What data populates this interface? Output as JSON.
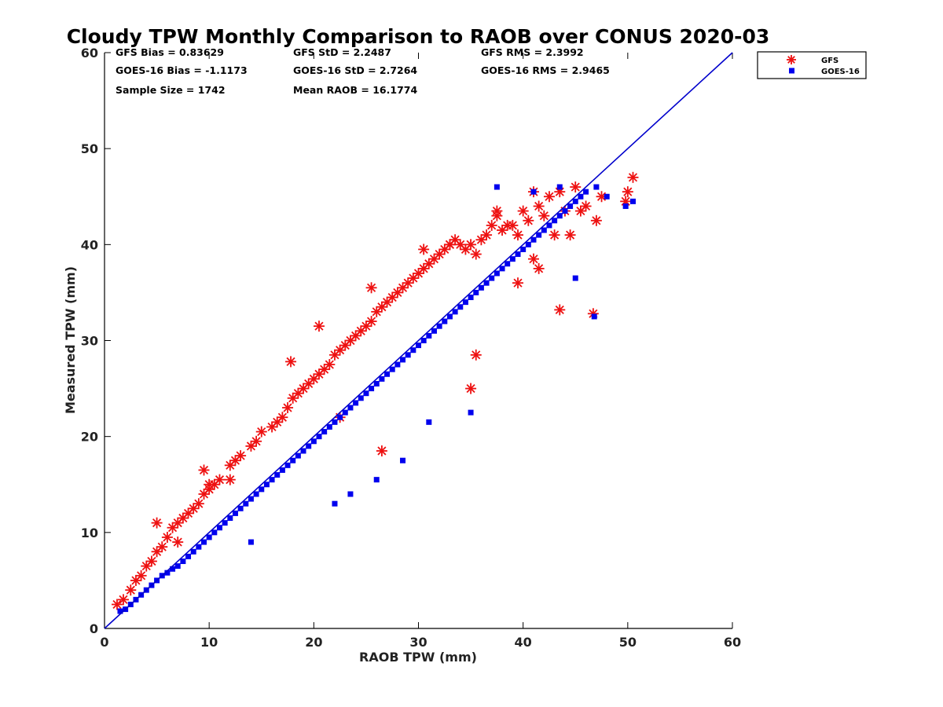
{
  "chart_data": {
    "type": "scatter",
    "title": "Cloudy TPW Monthly Comparison to RAOB over CONUS 2020-03",
    "xlabel": "RAOB TPW (mm)",
    "ylabel": "Measured TPW (mm)",
    "xlim": [
      0,
      60
    ],
    "ylim": [
      0,
      60
    ],
    "xticks": [
      0,
      10,
      20,
      30,
      40,
      50,
      60
    ],
    "yticks": [
      0,
      10,
      20,
      30,
      40,
      50,
      60
    ],
    "grid": false,
    "legend_position": "top-right outside",
    "reference_line": {
      "x": [
        0,
        60
      ],
      "y": [
        0,
        60
      ],
      "color": "#0000cc"
    },
    "stats": [
      {
        "label": "GFS Bias = 0.83629"
      },
      {
        "label": "GFS StD = 2.2487"
      },
      {
        "label": "GFS RMS = 2.3992"
      },
      {
        "label": "GOES-16 Bias = -1.1173"
      },
      {
        "label": "GOES-16 StD = 2.7264"
      },
      {
        "label": "GOES-16 RMS = 2.9465"
      },
      {
        "label": "Sample Size = 1742"
      },
      {
        "label": "Mean RAOB = 16.1774"
      }
    ],
    "series": [
      {
        "name": "GFS",
        "marker": "asterisk",
        "color": "#ee1111",
        "x": [
          1.2,
          1.8,
          2.5,
          3.0,
          3.5,
          4.0,
          4.5,
          5.0,
          5.5,
          6.0,
          6.5,
          7.0,
          7.5,
          8.0,
          8.5,
          9.0,
          9.5,
          10.0,
          10.5,
          11.0,
          12.0,
          12.5,
          13.0,
          14.0,
          14.5,
          15.0,
          16.0,
          16.5,
          17.0,
          17.5,
          18.0,
          18.5,
          19.0,
          19.5,
          20.0,
          20.5,
          21.0,
          21.5,
          22.0,
          22.5,
          23.0,
          23.5,
          24.0,
          24.5,
          25.0,
          25.5,
          26.0,
          26.5,
          27.0,
          27.5,
          28.0,
          28.5,
          29.0,
          29.5,
          30.0,
          30.5,
          31.0,
          31.5,
          32.0,
          32.5,
          33.0,
          33.5,
          34.0,
          34.5,
          35.0,
          35.5,
          36.0,
          36.5,
          37.0,
          37.5,
          38.0,
          38.5,
          39.0,
          39.5,
          40.0,
          40.5,
          41.0,
          41.5,
          42.0,
          42.5,
          43.0,
          43.5,
          44.0,
          44.5,
          45.0,
          45.5,
          46.0,
          47.0,
          47.5,
          49.8,
          50.0,
          50.5,
          17.8,
          20.5,
          25.5,
          30.5,
          33.0,
          35.0,
          35.5,
          37.5,
          22.5,
          26.5,
          12.0,
          9.5,
          10.0,
          7.0,
          5.0,
          46.7,
          43.5,
          41.0,
          41.5,
          39.5
        ],
        "y": [
          2.5,
          3.0,
          4.0,
          5.0,
          5.5,
          6.5,
          7.0,
          8.0,
          8.5,
          9.5,
          10.5,
          11.0,
          11.5,
          12.0,
          12.5,
          13.0,
          14.0,
          14.5,
          15.0,
          15.5,
          17.0,
          17.5,
          18.0,
          19.0,
          19.5,
          20.5,
          21.0,
          21.5,
          22.0,
          23.0,
          24.0,
          24.5,
          25.0,
          25.5,
          26.0,
          26.5,
          27.0,
          27.5,
          28.5,
          29.0,
          29.5,
          30.0,
          30.5,
          31.0,
          31.5,
          32.0,
          33.0,
          33.5,
          34.0,
          34.5,
          35.0,
          35.5,
          36.0,
          36.5,
          37.0,
          37.5,
          38.0,
          38.5,
          39.0,
          39.5,
          40.0,
          40.5,
          40.0,
          39.5,
          40.0,
          39.0,
          40.5,
          41.0,
          42.0,
          43.5,
          41.5,
          42.0,
          42.0,
          41.0,
          43.5,
          42.5,
          45.5,
          44.0,
          43.0,
          45.0,
          41.0,
          45.5,
          43.5,
          41.0,
          46.0,
          43.5,
          44.0,
          42.5,
          45.0,
          44.5,
          45.5,
          47.0,
          27.8,
          31.5,
          35.5,
          39.5,
          40.0,
          25.0,
          28.5,
          43.0,
          22.0,
          18.5,
          15.5,
          16.5,
          15.0,
          9.0,
          11.0,
          32.8,
          33.2,
          38.5,
          37.5,
          36.0
        ]
      },
      {
        "name": "GOES-16",
        "marker": "square",
        "color": "#0000ee",
        "x": [
          1.5,
          2.0,
          2.5,
          3.0,
          3.5,
          4.0,
          4.5,
          5.0,
          5.5,
          6.0,
          6.5,
          7.0,
          7.5,
          8.0,
          8.5,
          9.0,
          9.5,
          10.0,
          10.5,
          11.0,
          11.5,
          12.0,
          12.5,
          13.0,
          13.5,
          14.0,
          14.5,
          15.0,
          15.5,
          16.0,
          16.5,
          17.0,
          17.5,
          18.0,
          18.5,
          19.0,
          19.5,
          20.0,
          20.5,
          21.0,
          21.5,
          22.0,
          22.5,
          23.0,
          23.5,
          24.0,
          24.5,
          25.0,
          25.5,
          26.0,
          26.5,
          27.0,
          27.5,
          28.0,
          28.5,
          29.0,
          29.5,
          30.0,
          30.5,
          31.0,
          31.5,
          32.0,
          32.5,
          33.0,
          33.5,
          34.0,
          34.5,
          35.0,
          35.5,
          36.0,
          36.5,
          37.0,
          37.5,
          38.0,
          38.5,
          39.0,
          39.5,
          40.0,
          40.5,
          41.0,
          41.5,
          42.0,
          42.5,
          43.0,
          43.5,
          44.0,
          44.5,
          45.0,
          45.5,
          46.0,
          47.0,
          48.0,
          49.8,
          50.5,
          23.5,
          28.5,
          31.0,
          37.5,
          35.0,
          22.0,
          26.0,
          14.0,
          45.0,
          46.8,
          41.0,
          43.5
        ],
        "y": [
          1.8,
          2.0,
          2.5,
          3.0,
          3.5,
          4.0,
          4.5,
          5.0,
          5.5,
          5.8,
          6.2,
          6.5,
          7.0,
          7.5,
          8.0,
          8.5,
          9.0,
          9.5,
          10.0,
          10.5,
          11.0,
          11.5,
          12.0,
          12.5,
          13.0,
          13.5,
          14.0,
          14.5,
          15.0,
          15.5,
          16.0,
          16.5,
          17.0,
          17.5,
          18.0,
          18.5,
          19.0,
          19.5,
          20.0,
          20.5,
          21.0,
          21.5,
          22.0,
          22.5,
          23.0,
          23.5,
          24.0,
          24.5,
          25.0,
          25.5,
          26.0,
          26.5,
          27.0,
          27.5,
          28.0,
          28.5,
          29.0,
          29.5,
          30.0,
          30.5,
          31.0,
          31.5,
          32.0,
          32.5,
          33.0,
          33.5,
          34.0,
          34.5,
          35.0,
          35.5,
          36.0,
          36.5,
          37.0,
          37.5,
          38.0,
          38.5,
          39.0,
          39.5,
          40.0,
          40.5,
          41.0,
          41.5,
          42.0,
          42.5,
          43.0,
          43.5,
          44.0,
          44.5,
          45.0,
          45.5,
          46.0,
          45.0,
          44.0,
          44.5,
          14.0,
          17.5,
          21.5,
          46.0,
          22.5,
          13.0,
          15.5,
          9.0,
          36.5,
          32.5,
          45.5,
          46.0
        ]
      }
    ]
  }
}
